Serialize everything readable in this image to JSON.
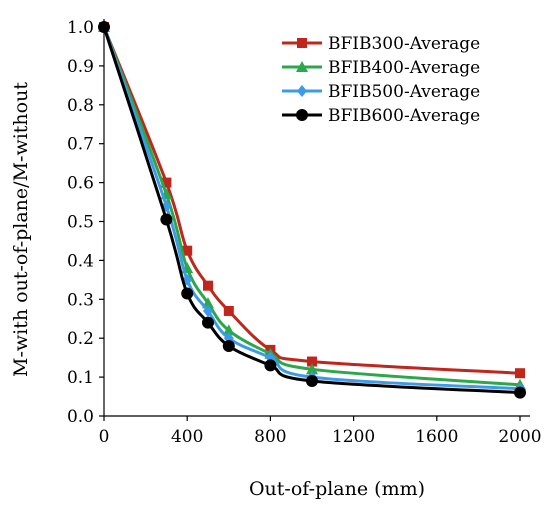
{
  "chart_data": {
    "type": "line",
    "title": "",
    "xlabel": "Out-of-plane (mm)",
    "ylabel": "M-with out-of-plane/M-without",
    "xlim": [
      0,
      2100
    ],
    "ylim": [
      0,
      1.05
    ],
    "x_ticks": [
      0,
      400,
      800,
      1200,
      1600,
      2000
    ],
    "y_ticks": [
      0.0,
      0.1,
      0.2,
      0.3,
      0.4,
      0.5,
      0.6,
      0.7,
      0.8,
      0.9,
      1.0
    ],
    "x_tick_labels": [
      "0",
      "400",
      "800",
      "1200",
      "1600",
      "2000"
    ],
    "y_tick_labels": [
      "0.0",
      "0.1",
      "0.2",
      "0.3",
      "0.4",
      "0.5",
      "0.6",
      "0.7",
      "0.8",
      "0.9",
      "1.0"
    ],
    "grid": false,
    "legend_position": "top-right",
    "series": [
      {
        "name": "BFIB300-Average",
        "color": "#c0261c",
        "marker": "square",
        "x": [
          0,
          300,
          400,
          500,
          600,
          800,
          1000,
          2000
        ],
        "y": [
          1.0,
          0.6,
          0.425,
          0.335,
          0.27,
          0.17,
          0.14,
          0.11
        ]
      },
      {
        "name": "BFIB400-Average",
        "color": "#2aa84a",
        "marker": "triangle",
        "x": [
          0,
          300,
          400,
          500,
          600,
          800,
          1000,
          2000
        ],
        "y": [
          1.0,
          0.57,
          0.38,
          0.29,
          0.22,
          0.16,
          0.12,
          0.08
        ]
      },
      {
        "name": "BFIB500-Average",
        "color": "#3c9be6",
        "marker": "diamond",
        "x": [
          0,
          300,
          400,
          500,
          600,
          800,
          1000,
          2000
        ],
        "y": [
          1.0,
          0.54,
          0.35,
          0.27,
          0.2,
          0.15,
          0.1,
          0.07
        ]
      },
      {
        "name": "BFIB600-Average",
        "color": "#000000",
        "marker": "circle",
        "x": [
          0,
          300,
          400,
          500,
          600,
          800,
          1000,
          2000
        ],
        "y": [
          1.0,
          0.505,
          0.315,
          0.24,
          0.18,
          0.13,
          0.09,
          0.06
        ]
      }
    ]
  }
}
